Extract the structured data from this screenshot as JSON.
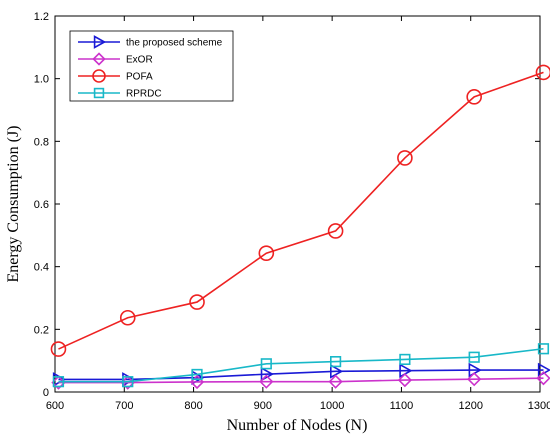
{
  "chart_data": {
    "type": "line",
    "title": "",
    "xlabel": "Number of Nodes (N)",
    "ylabel": "Energy Consumption (J)",
    "xlim": [
      600,
      1300
    ],
    "ylim": [
      0,
      1.2
    ],
    "xticks": [
      600,
      700,
      800,
      900,
      1000,
      1100,
      1200,
      1300
    ],
    "yticks": [
      0,
      0.2,
      0.4,
      0.6,
      0.8,
      1.0,
      1.2
    ],
    "ytick_labels": [
      "0",
      "0.2",
      "0.4",
      "0.6",
      "0.8",
      "1.0",
      "1.2"
    ],
    "grid": false,
    "legend_position": "top-left",
    "x": [
      605,
      705,
      805,
      905,
      1005,
      1105,
      1205,
      1305
    ],
    "series": [
      {
        "name": "the proposed scheme",
        "color": "#1a1ad6",
        "marker": "triangle-right",
        "values": [
          0.04,
          0.04,
          0.046,
          0.057,
          0.066,
          0.068,
          0.07,
          0.07
        ]
      },
      {
        "name": "ExOR",
        "color": "#cc33cc",
        "marker": "diamond",
        "values": [
          0.03,
          0.03,
          0.032,
          0.033,
          0.033,
          0.038,
          0.041,
          0.044
        ]
      },
      {
        "name": "POFA",
        "color": "#ee2222",
        "marker": "circle",
        "values": [
          0.137,
          0.237,
          0.287,
          0.443,
          0.514,
          0.747,
          0.942,
          1.02
        ]
      },
      {
        "name": "RPRDC",
        "color": "#18b8c8",
        "marker": "square",
        "values": [
          0.033,
          0.033,
          0.056,
          0.09,
          0.097,
          0.104,
          0.111,
          0.138
        ]
      }
    ]
  }
}
